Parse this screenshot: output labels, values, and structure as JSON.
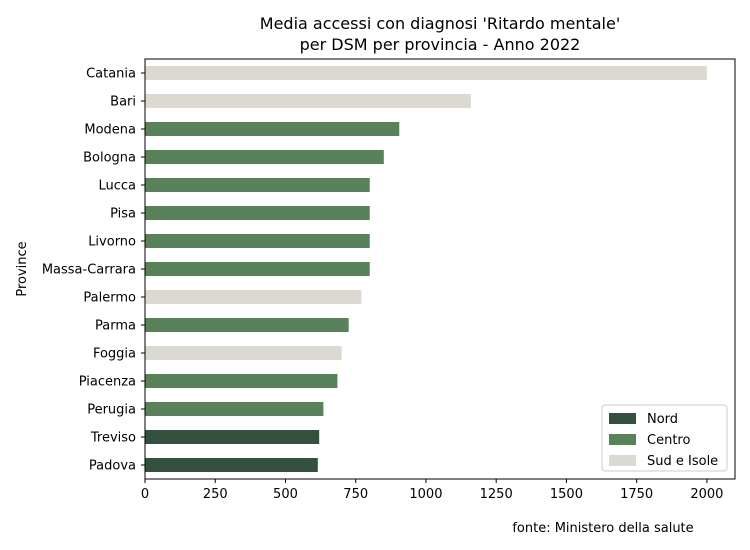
{
  "chart_data": {
    "type": "bar",
    "orientation": "horizontal",
    "title_line1": "Media accessi con diagnosi 'Ritardo mentale'",
    "title_line2": "per DSM per provincia - Anno 2022",
    "ylabel": "Province",
    "xlabel": "",
    "source_note": "fonte: Ministero della salute",
    "xlim": [
      0,
      2100
    ],
    "xticks": [
      0,
      250,
      500,
      750,
      1000,
      1250,
      1500,
      1750,
      2000
    ],
    "categories": [
      "Catania",
      "Bari",
      "Modena",
      "Bologna",
      "Lucca",
      "Pisa",
      "Livorno",
      "Massa-Carrara",
      "Palermo",
      "Parma",
      "Foggia",
      "Piacenza",
      "Perugia",
      "Treviso",
      "Padova"
    ],
    "values": [
      2000,
      1160,
      905,
      850,
      800,
      800,
      800,
      800,
      770,
      725,
      700,
      685,
      635,
      620,
      615
    ],
    "groups": [
      "Sud e Isole",
      "Sud e Isole",
      "Centro",
      "Centro",
      "Centro",
      "Centro",
      "Centro",
      "Centro",
      "Sud e Isole",
      "Centro",
      "Sud e Isole",
      "Centro",
      "Centro",
      "Nord",
      "Nord"
    ],
    "legend": {
      "position": "lower-right",
      "entries": [
        {
          "name": "Nord",
          "color": "#34503f"
        },
        {
          "name": "Centro",
          "color": "#5a825a"
        },
        {
          "name": "Sud e Isole",
          "color": "#dcdad0"
        }
      ]
    },
    "grid": false
  }
}
